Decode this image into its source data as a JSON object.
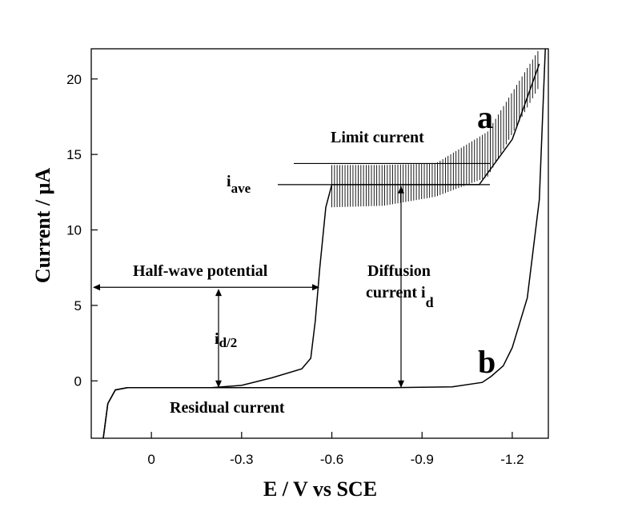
{
  "chart_data": {
    "type": "line",
    "xlabel": "E / V vs SCE",
    "ylabel": "Current / μA",
    "xlim": [
      0.2,
      -1.32
    ],
    "ylim": [
      -3.8,
      22
    ],
    "x_ticks": [
      0,
      -0.3,
      -0.6,
      -0.9,
      -1.2
    ],
    "x_tick_labels": [
      "0",
      "-0.3",
      "-0.6",
      "-0.9",
      "-1.2"
    ],
    "y_ticks": [
      0,
      5,
      10,
      15,
      20
    ],
    "y_tick_labels": [
      "0",
      "5",
      "10",
      "15",
      "20"
    ],
    "grid": false,
    "series": [
      {
        "name": "a",
        "x": [
          0.16,
          0.145,
          0.12,
          0.08,
          0.0,
          -0.2,
          -0.3,
          -0.4,
          -0.5,
          -0.53,
          -0.545,
          -0.56,
          -0.58,
          -0.6,
          -0.7,
          -0.9,
          -1.09,
          -1.2,
          -1.29
        ],
        "y": [
          -3.8,
          -1.5,
          -0.6,
          -0.45,
          -0.45,
          -0.45,
          -0.3,
          0.2,
          0.8,
          1.5,
          4.0,
          7.5,
          11.5,
          13.0,
          13.0,
          13.0,
          13.0,
          16.0,
          21.0
        ],
        "oscillation": {
          "x_start": -0.6,
          "x_end": -1.29,
          "y_low": [
            11.5,
            11.6,
            12.2,
            13.5,
            19.5
          ],
          "y_high": [
            14.3,
            14.3,
            14.4,
            16.5,
            22.0
          ]
        }
      },
      {
        "name": "b",
        "x": [
          0.16,
          0.145,
          0.12,
          0.08,
          0.0,
          -0.2,
          -0.5,
          -0.8,
          -1.0,
          -1.1,
          -1.13,
          -1.17,
          -1.2,
          -1.25,
          -1.29,
          -1.31
        ],
        "y": [
          -3.8,
          -1.5,
          -0.6,
          -0.45,
          -0.45,
          -0.45,
          -0.45,
          -0.45,
          -0.4,
          -0.1,
          0.3,
          1.0,
          2.2,
          5.5,
          12.0,
          22.0
        ]
      }
    ],
    "annotations": {
      "curve_a_label": "a",
      "curve_b_label": "b",
      "limit_current": "Limit current",
      "i_ave_main": "i",
      "i_ave_sub": "ave",
      "half_wave_potential": "Half-wave potential",
      "id2_main": "i",
      "id2_sub": "d/2",
      "diffusion_line1": "Diffusion",
      "diffusion_line2_main": "current  i",
      "diffusion_line2_sub": "d",
      "residual_current": "Residual  current"
    }
  }
}
